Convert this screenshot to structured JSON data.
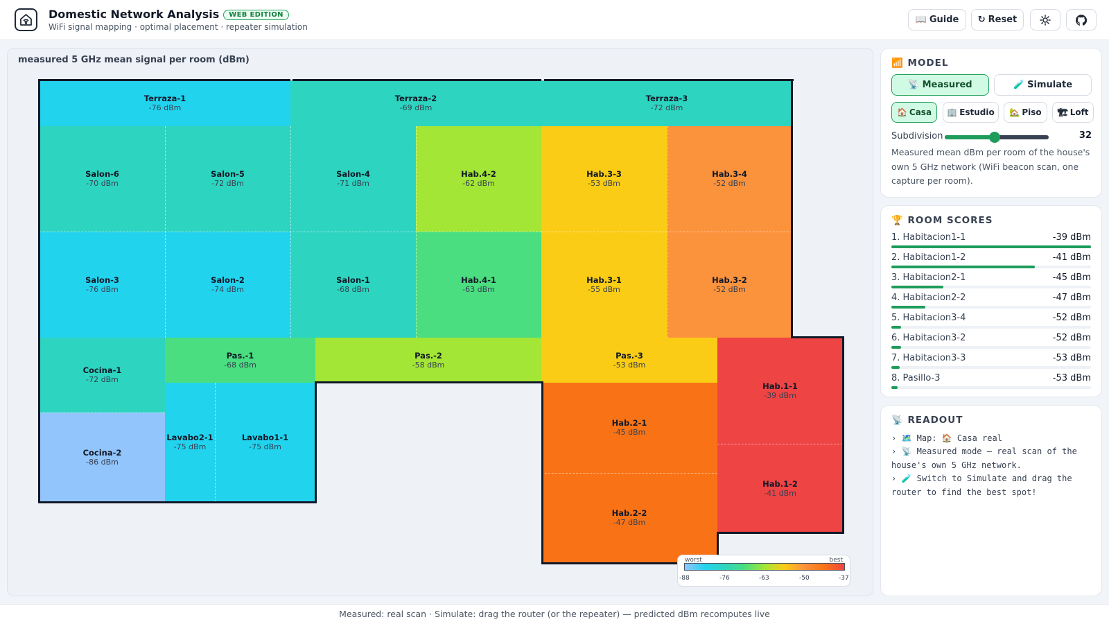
{
  "header": {
    "title": "Domestic Network Analysis",
    "badge": "WEB EDITION",
    "subtitle": "WiFi signal mapping · optimal placement · repeater simulation",
    "guide_icon": "📖",
    "guide_label": "Guide",
    "reset_icon": "↻",
    "reset_label": "Reset",
    "theme_icon": "sun-icon",
    "github_icon": "github-icon"
  },
  "map": {
    "title": "measured 5 GHz mean signal per room (dBm)",
    "rooms": [
      {
        "name": "Terraza-1",
        "value": "-76 dBm",
        "color": "#22d3ee"
      },
      {
        "name": "Terraza-2",
        "value": "-69 dBm",
        "color": "#2dd4bf"
      },
      {
        "name": "Terraza-3",
        "value": "-72 dBm",
        "color": "#2dd4bf"
      },
      {
        "name": "Salon-6",
        "value": "-70 dBm",
        "color": "#2dd4bf"
      },
      {
        "name": "Salon-5",
        "value": "-72 dBm",
        "color": "#2dd4bf"
      },
      {
        "name": "Salon-4",
        "value": "-71 dBm",
        "color": "#2dd4bf"
      },
      {
        "name": "Hab.4-2",
        "value": "-62 dBm",
        "color": "#a3e635"
      },
      {
        "name": "Hab.3-3",
        "value": "-53 dBm",
        "color": "#facc15"
      },
      {
        "name": "Hab.3-4",
        "value": "-52 dBm",
        "color": "#fb923c"
      },
      {
        "name": "Salon-3",
        "value": "-76 dBm",
        "color": "#22d3ee"
      },
      {
        "name": "Salon-2",
        "value": "-74 dBm",
        "color": "#22d3ee"
      },
      {
        "name": "Salon-1",
        "value": "-68 dBm",
        "color": "#2dd4bf"
      },
      {
        "name": "Hab.4-1",
        "value": "-63 dBm",
        "color": "#4ade80"
      },
      {
        "name": "Hab.3-1",
        "value": "-55 dBm",
        "color": "#facc15"
      },
      {
        "name": "Hab.3-2",
        "value": "-52 dBm",
        "color": "#fb923c"
      },
      {
        "name": "Cocina-1",
        "value": "-72 dBm",
        "color": "#2dd4bf"
      },
      {
        "name": "Pas.-1",
        "value": "-68 dBm",
        "color": "#4ade80"
      },
      {
        "name": "Pas.-2",
        "value": "-58 dBm",
        "color": "#a3e635"
      },
      {
        "name": "Pas.-3",
        "value": "-53 dBm",
        "color": "#facc15"
      },
      {
        "name": "Hab.1-1",
        "value": "-39 dBm",
        "color": "#ef4444"
      },
      {
        "name": "Cocina-2",
        "value": "-86 dBm",
        "color": "#93c5fd"
      },
      {
        "name": "Lavabo2-1",
        "value": "-75 dBm",
        "color": "#22d3ee"
      },
      {
        "name": "Lavabo1-1",
        "value": "-75 dBm",
        "color": "#22d3ee"
      },
      {
        "name": "Hab.2-1",
        "value": "-45 dBm",
        "color": "#f97316"
      },
      {
        "name": "Hab.1-2",
        "value": "-41 dBm",
        "color": "#ef4444"
      },
      {
        "name": "Hab.2-2",
        "value": "-47 dBm",
        "color": "#f97316"
      }
    ],
    "legend": {
      "worst": "worst",
      "best": "best",
      "ticks": [
        "-88",
        "-76",
        "-63",
        "-50",
        "-37"
      ]
    }
  },
  "model": {
    "title": "MODEL",
    "title_icon": "📶",
    "modes": [
      {
        "icon": "📡",
        "label": "Measured",
        "active": true
      },
      {
        "icon": "🧪",
        "label": "Simulate",
        "active": false
      }
    ],
    "maps": [
      {
        "icon": "🏠",
        "label": "Casa",
        "active": true
      },
      {
        "icon": "🏢",
        "label": "Estudio",
        "active": false
      },
      {
        "icon": "🏡",
        "label": "Piso",
        "active": false
      },
      {
        "icon": "🏗",
        "label": "Loft",
        "active": false
      }
    ],
    "subdivision_label": "Subdivision",
    "subdivision_value": "32",
    "subdivision_fraction": 0.48,
    "description": "Measured mean dBm per room of the house's own 5 GHz network (WiFi beacon scan, one capture per room)."
  },
  "scores": {
    "title": "ROOM SCORES",
    "title_icon": "🏆",
    "items": [
      {
        "name": "1. Habitacion1-1",
        "value": "-39 dBm",
        "fraction": 1.0
      },
      {
        "name": "2. Habitacion1-2",
        "value": "-41 dBm",
        "fraction": 0.72
      },
      {
        "name": "3. Habitacion2-1",
        "value": "-45 dBm",
        "fraction": 0.26
      },
      {
        "name": "4. Habitacion2-2",
        "value": "-47 dBm",
        "fraction": 0.17
      },
      {
        "name": "5. Habitacion3-4",
        "value": "-52 dBm",
        "fraction": 0.05
      },
      {
        "name": "6. Habitacion3-2",
        "value": "-52 dBm",
        "fraction": 0.05
      },
      {
        "name": "7. Habitacion3-3",
        "value": "-53 dBm",
        "fraction": 0.04
      },
      {
        "name": "8. Pasillo-3",
        "value": "-53 dBm",
        "fraction": 0.03
      }
    ]
  },
  "readout": {
    "title": "READOUT",
    "title_icon": "📡",
    "lines": [
      "› 🗺️ Map: 🏠 Casa real",
      "› 📡 Measured mode — real scan of the house's own 5 GHz network.",
      "› 🧪 Switch to Simulate and drag the router to find the best spot!"
    ]
  },
  "footer": {
    "text": "Measured: real scan · Simulate: drag the router (or the repeater) — predicted dBm recomputes live"
  }
}
